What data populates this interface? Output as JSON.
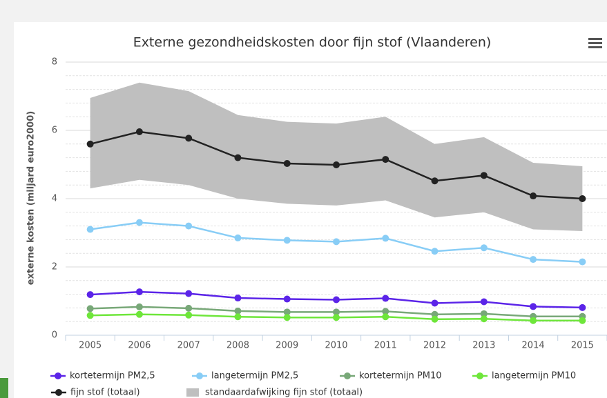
{
  "chart_data": {
    "type": "line",
    "title": "Externe gezondheidskosten door fijn stof (Vlaanderen)",
    "y_label": "externe kosten (miljard euro2000)",
    "categories": [
      "2005",
      "2006",
      "2007",
      "2008",
      "2009",
      "2010",
      "2011",
      "2012",
      "2013",
      "2014",
      "2015"
    ],
    "ylim": [
      0,
      8
    ],
    "yticks": [
      0,
      2,
      4,
      6,
      8
    ],
    "grid": true,
    "band": {
      "name": "standaardafwijking fijn stof (totaal)",
      "color": "#bfbfbf",
      "low": [
        4.3,
        4.55,
        4.4,
        4.0,
        3.85,
        3.8,
        3.95,
        3.45,
        3.6,
        3.1,
        3.05
      ],
      "high": [
        6.95,
        7.4,
        7.15,
        6.45,
        6.25,
        6.2,
        6.4,
        5.6,
        5.8,
        5.05,
        4.95
      ]
    },
    "series": [
      {
        "name": "kortetermijn PM2,5",
        "color": "#5b24e8",
        "values": [
          1.19,
          1.27,
          1.22,
          1.09,
          1.06,
          1.04,
          1.08,
          0.94,
          0.98,
          0.84,
          0.81
        ]
      },
      {
        "name": "langetermijn PM2,5",
        "color": "#88cdf6",
        "values": [
          3.1,
          3.3,
          3.2,
          2.85,
          2.78,
          2.74,
          2.84,
          2.46,
          2.56,
          2.22,
          2.15
        ]
      },
      {
        "name": "kortetermijn PM10",
        "color": "#78a878",
        "values": [
          0.78,
          0.83,
          0.79,
          0.71,
          0.68,
          0.68,
          0.7,
          0.61,
          0.63,
          0.55,
          0.55
        ]
      },
      {
        "name": "langetermijn PM10",
        "color": "#6ee63a",
        "values": [
          0.58,
          0.61,
          0.59,
          0.54,
          0.52,
          0.52,
          0.54,
          0.47,
          0.48,
          0.43,
          0.43
        ]
      },
      {
        "name": "fijn stof (totaal)",
        "color": "#222222",
        "values": [
          5.6,
          5.96,
          5.77,
          5.2,
          5.03,
          4.99,
          5.15,
          4.52,
          4.68,
          4.08,
          4.0
        ]
      }
    ]
  }
}
